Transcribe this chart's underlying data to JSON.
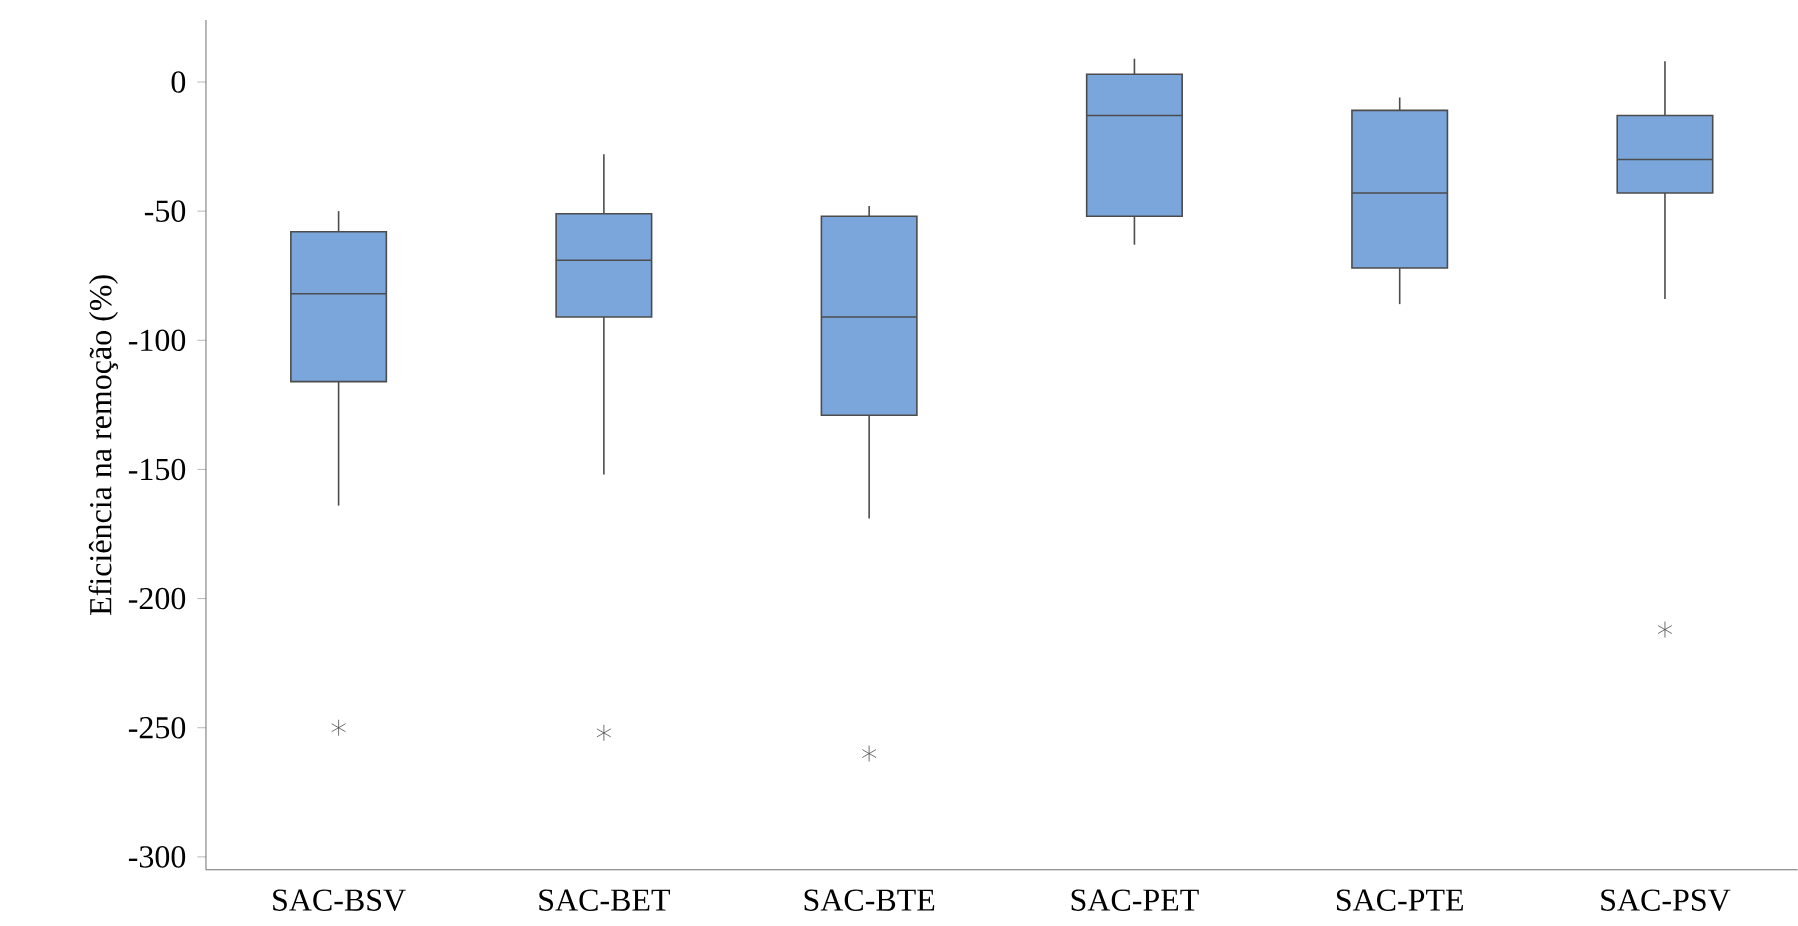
{
  "chart_data": {
    "type": "box",
    "ylabel": "Eficiência na remoção (%)",
    "categories": [
      "SAC-BSV",
      "SAC-BET",
      "SAC-BTE",
      "SAC-PET",
      "SAC-PTE",
      "SAC-PSV"
    ],
    "color": "#7aa6dc",
    "boxes": [
      {
        "low": -164,
        "q1": -116,
        "median": -82,
        "q3": -58,
        "high": -50,
        "outliers": [
          -250
        ]
      },
      {
        "low": -152,
        "q1": -91,
        "median": -69,
        "q3": -51,
        "high": -28,
        "outliers": [
          -252
        ]
      },
      {
        "low": -169,
        "q1": -129,
        "median": -91,
        "q3": -52,
        "high": -48,
        "outliers": [
          -260
        ]
      },
      {
        "low": -63,
        "q1": -52,
        "median": -13,
        "q3": 3,
        "high": 9
      },
      {
        "low": -86,
        "q1": -72,
        "median": -43,
        "q3": -11,
        "high": -6
      },
      {
        "low": -84,
        "q1": -43,
        "median": -30,
        "q3": -13,
        "high": 8,
        "outliers": [
          -212
        ]
      }
    ],
    "ylim": [
      -305,
      24
    ],
    "yticks": [
      -300,
      -250,
      -200,
      -150,
      -100,
      -50,
      0
    ],
    "marker": "asterisk",
    "grid": false
  }
}
